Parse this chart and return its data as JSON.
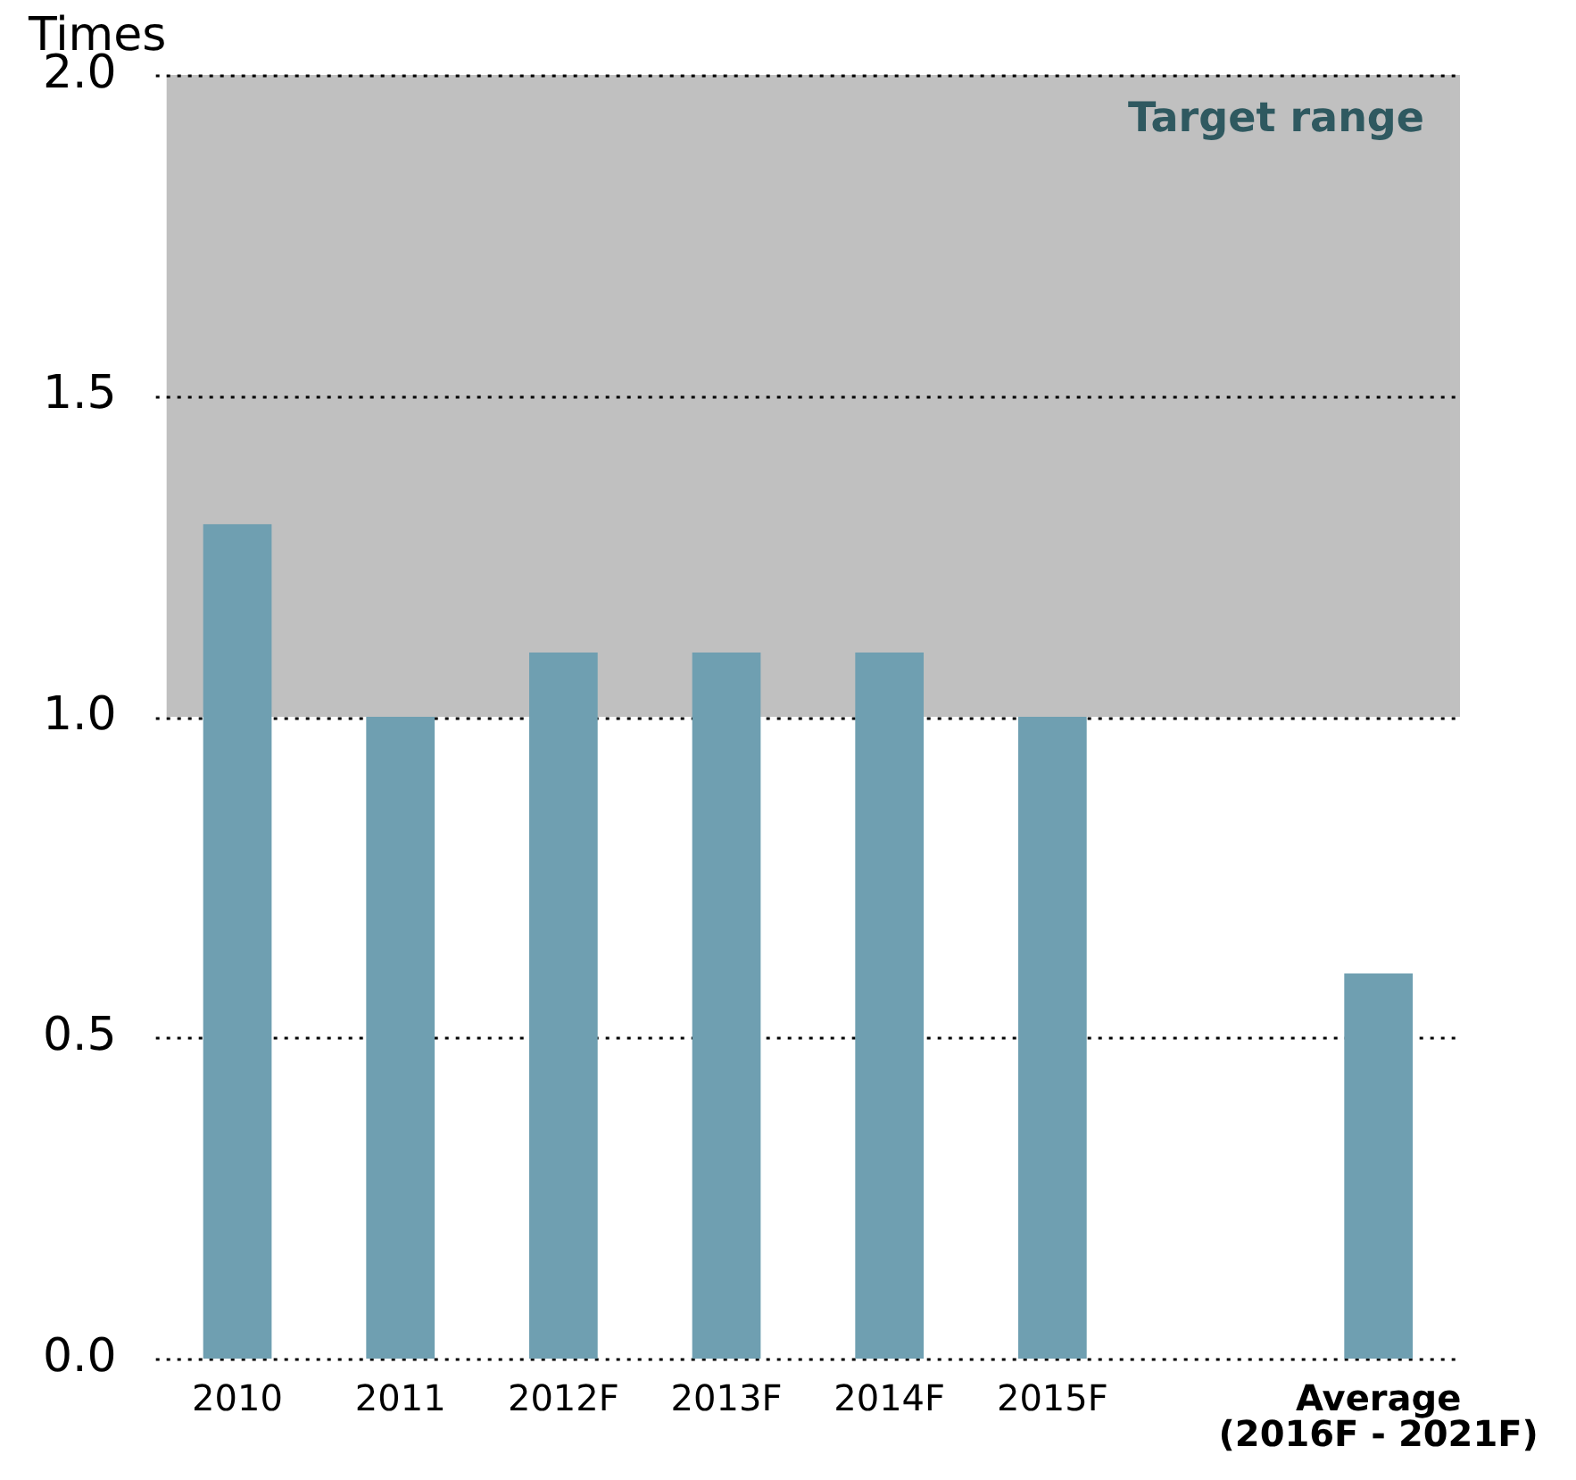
{
  "chart_data": {
    "type": "bar",
    "ylabel": "Times",
    "categories": [
      "2010",
      "2011",
      "2012F",
      "2013F",
      "2014F",
      "2015F",
      null,
      "Average (2016F - 2021F)"
    ],
    "values": [
      1.3,
      1.0,
      1.1,
      1.1,
      1.1,
      1.0,
      null,
      0.6
    ],
    "color": "#6f9fb1",
    "ylim": [
      0,
      2
    ],
    "yticks": [
      {
        "value": 0,
        "label": "0.0"
      },
      {
        "value": 0.5,
        "label": "0.5"
      },
      {
        "value": 1,
        "label": "1.0"
      },
      1.5,
      {
        "value": 2,
        "label": "2.0"
      }
    ],
    "bands": [
      {
        "axis": "y",
        "from": 1,
        "to": 2,
        "label": "Target range",
        "color": "#c0c0c0"
      }
    ],
    "grid": "y",
    "legend": false
  }
}
